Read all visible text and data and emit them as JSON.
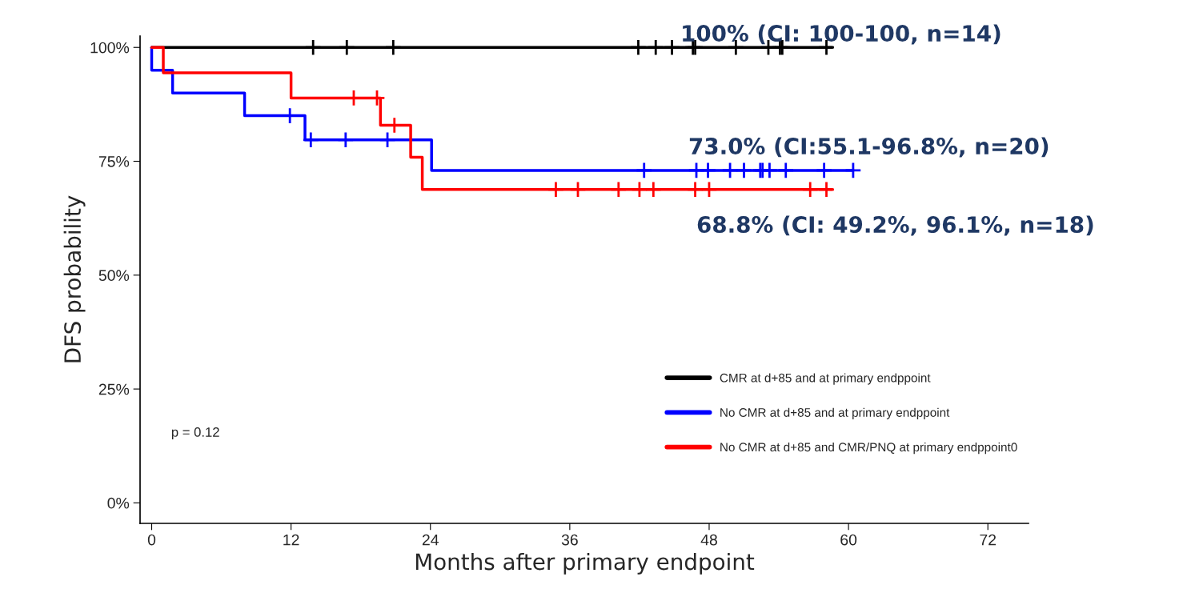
{
  "chart_data": {
    "type": "step",
    "xlabel": "Months after primary endpoint",
    "ylabel": "DFS probability",
    "xlim": [
      -1,
      75.5
    ],
    "xticks": [
      0,
      12,
      24,
      36,
      48,
      60,
      72
    ],
    "ylim": [
      -4.5,
      102.5
    ],
    "yticks": [
      {
        "value": 0,
        "label": "0%"
      },
      {
        "value": 25,
        "label": "25%"
      },
      {
        "value": 50,
        "label": "50%"
      },
      {
        "value": 75,
        "label": "75%"
      },
      {
        "value": 100,
        "label": "100%"
      }
    ],
    "grid": false,
    "legend": "bottom right",
    "series": [
      {
        "name": "CMR at d+85 and at primary endppoint",
        "color": "#000000",
        "x": [
          0,
          58.6
        ],
        "values": [
          100,
          100
        ]
      },
      {
        "name": "No CMR at d+85 and at primary endppoint",
        "color": "#0000ff",
        "x": [
          0,
          0,
          1.8,
          8.0,
          13.2,
          24.1,
          60.4
        ],
        "values": [
          100,
          95,
          90,
          85,
          79.7,
          73,
          73
        ]
      },
      {
        "name": "No CMR at d+85 and CMR/PNQ at primary endppoint0",
        "color": "#ff0000",
        "x": [
          0,
          1.0,
          12.0,
          19.7,
          22.3,
          23.3,
          58.6
        ],
        "values": [
          100,
          94.4,
          88.9,
          82.9,
          75.9,
          68.8,
          68.8
        ]
      },
      {
        "color": "#000000",
        "type": "scatter",
        "marker": "cross",
        "x": [
          13.9,
          16.8,
          20.8,
          41.9,
          43.4,
          44.8,
          46.6,
          46.8,
          50.3,
          53.1,
          54.1,
          54.3,
          58.1
        ],
        "values": [
          100,
          100,
          100,
          100,
          100,
          100,
          100,
          100,
          100,
          100,
          100,
          100,
          100
        ]
      },
      {
        "color": "#0000ff",
        "type": "scatter",
        "marker": "cross",
        "x": [
          11.9,
          13.7,
          16.7,
          20.3,
          42.4,
          46.9,
          47.9,
          49.8,
          51.0,
          52.4,
          52.6,
          53.2,
          54.6,
          57.9,
          60.4
        ],
        "values": [
          85,
          79.7,
          79.7,
          79.7,
          73,
          73,
          73,
          73,
          73,
          73,
          73,
          73,
          73,
          73,
          73
        ]
      },
      {
        "color": "#ff0000",
        "type": "scatter",
        "marker": "cross",
        "x": [
          17.4,
          19.4,
          20.9,
          34.8,
          36.7,
          40.2,
          42.0,
          43.2,
          46.8,
          48.0,
          56.7,
          58.1
        ],
        "values": [
          88.9,
          88.9,
          82.9,
          68.8,
          68.8,
          68.8,
          68.8,
          68.8,
          68.8,
          68.8,
          68.8,
          68.8
        ]
      }
    ],
    "annotations": [
      "100% (CI: 100-100, n=14)",
      "73.0% (CI:55.1-96.8%, n=20)",
      "68.8% (CI: 49.2%, 96.1%, n=18)",
      "p = 0.12"
    ]
  }
}
